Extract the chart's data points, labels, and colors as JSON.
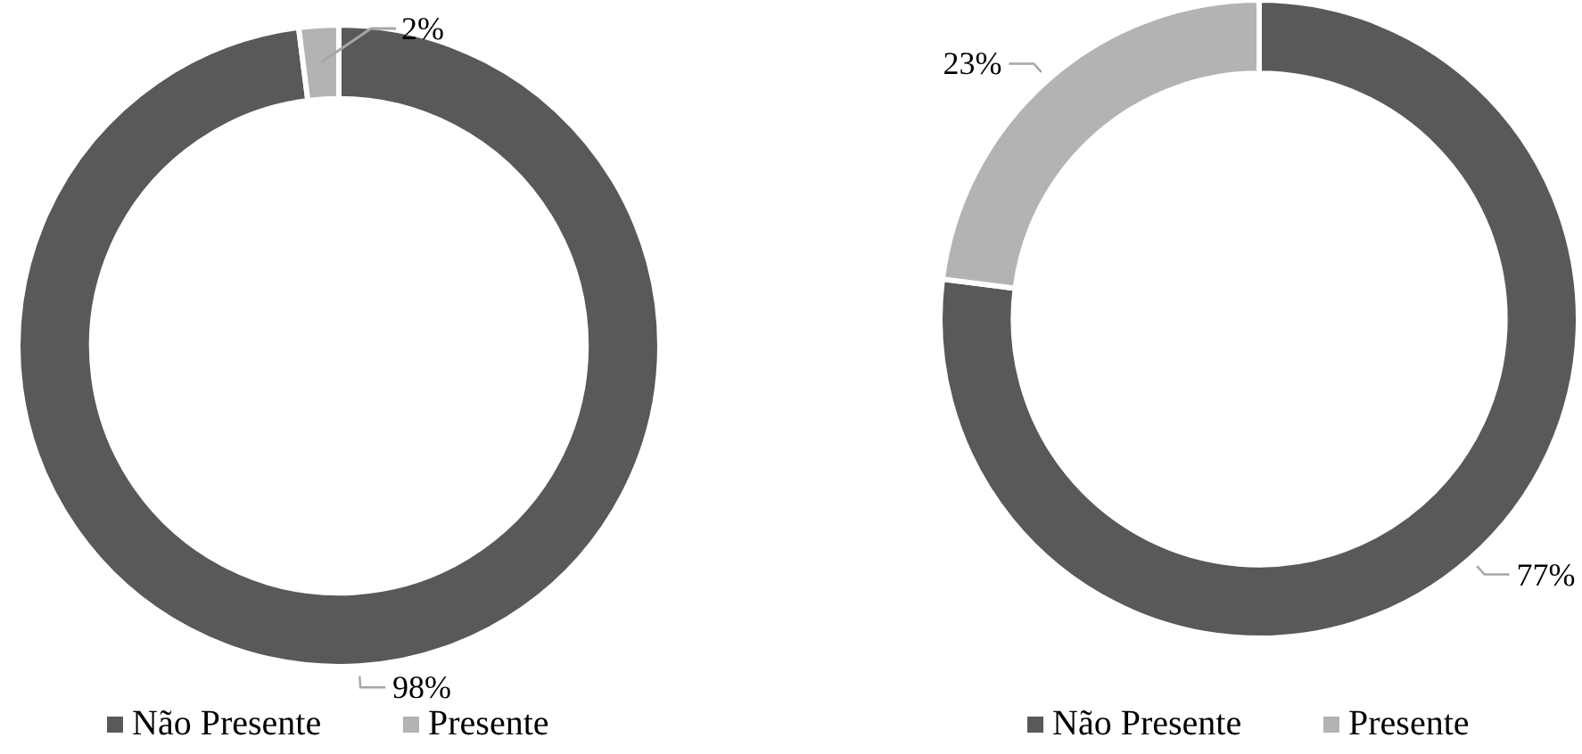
{
  "chart_data": [
    {
      "type": "donut",
      "categories": [
        "Não Presente",
        "Presente"
      ],
      "values": [
        98,
        2
      ],
      "value_labels": [
        "98%",
        "2%"
      ],
      "colors": [
        "#595959",
        "#b3b3b3"
      ],
      "legend": "bottom"
    },
    {
      "type": "donut",
      "categories": [
        "Não Presente",
        "Presente"
      ],
      "values": [
        77,
        23
      ],
      "value_labels": [
        "77%",
        "23%"
      ],
      "colors": [
        "#595959",
        "#b3b3b3"
      ],
      "legend": "bottom"
    }
  ]
}
